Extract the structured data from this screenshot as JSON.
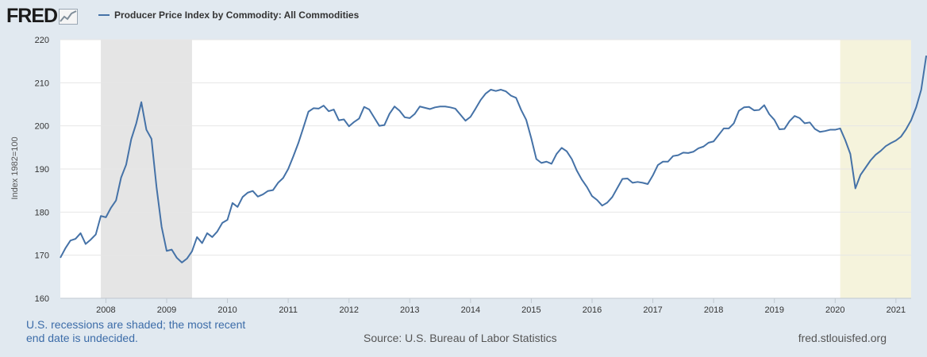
{
  "header": {
    "logo_text": "FRED",
    "legend_label": "Producer Price Index by Commodity: All Commodities"
  },
  "footer": {
    "note": "U.S. recessions are shaded; the most recent end date is undecided.",
    "source": "Source: U.S. Bureau of Labor Statistics",
    "url": "fred.stlouisfed.org"
  },
  "colors": {
    "series": "#4572a7",
    "recession_gray": "#e5e5e5",
    "recession_yellow": "#f5f3dc"
  },
  "chart_data": {
    "type": "line",
    "title": "Producer Price Index by Commodity: All Commodities",
    "ylabel": "Index 1982=100",
    "xlabel": "",
    "ylim": [
      160,
      220
    ],
    "yticks": [
      160,
      170,
      180,
      190,
      200,
      210,
      220
    ],
    "x_range": [
      2007.25,
      2021.25
    ],
    "xticks": [
      {
        "value": 2008,
        "label": "2008"
      },
      {
        "value": 2009,
        "label": "2009"
      },
      {
        "value": 2010,
        "label": "2010"
      },
      {
        "value": 2011,
        "label": "2011"
      },
      {
        "value": 2012,
        "label": "2012"
      },
      {
        "value": 2013,
        "label": "2013"
      },
      {
        "value": 2014,
        "label": "2014"
      },
      {
        "value": 2015,
        "label": "2015"
      },
      {
        "value": 2016,
        "label": "2016"
      },
      {
        "value": 2017,
        "label": "2017"
      },
      {
        "value": 2018,
        "label": "2018"
      },
      {
        "value": 2019,
        "label": "2019"
      },
      {
        "value": 2020,
        "label": "2020"
      },
      {
        "value": 2021,
        "label": "2021"
      }
    ],
    "recessions": [
      {
        "start": 2007.917,
        "end": 2009.417,
        "style": "gray"
      },
      {
        "start": 2020.083,
        "end": 2021.25,
        "style": "yellow"
      }
    ],
    "grid": true,
    "series": [
      {
        "name": "Producer Price Index by Commodity: All Commodities",
        "start_year": 2007.25,
        "step": 0.08333,
        "values": [
          169.4,
          171.6,
          173.4,
          173.8,
          175.1,
          172.6,
          173.6,
          174.8,
          179.1,
          178.8,
          181.0,
          182.7,
          188.0,
          191.0,
          196.9,
          200.6,
          205.5,
          199.1,
          197.0,
          185.8,
          176.6,
          171.0,
          171.3,
          169.4,
          168.3,
          169.2,
          170.9,
          174.2,
          172.8,
          175.1,
          174.2,
          175.5,
          177.5,
          178.2,
          182.1,
          181.2,
          183.5,
          184.5,
          184.9,
          183.6,
          184.1,
          184.9,
          185.1,
          186.8,
          187.9,
          190.0,
          192.9,
          196.0,
          199.6,
          203.3,
          204.1,
          204.0,
          204.7,
          203.4,
          203.8,
          201.3,
          201.5,
          199.9,
          200.9,
          201.7,
          204.4,
          203.8,
          201.9,
          200.0,
          200.2,
          202.8,
          204.5,
          203.5,
          202.0,
          201.8,
          202.8,
          204.5,
          204.2,
          203.9,
          204.3,
          204.5,
          204.5,
          204.3,
          204.0,
          202.6,
          201.2,
          202.1,
          204.0,
          206.0,
          207.5,
          208.4,
          208.1,
          208.4,
          208.0,
          207.0,
          206.5,
          203.7,
          201.4,
          197.1,
          192.3,
          191.4,
          191.7,
          191.2,
          193.5,
          194.9,
          194.1,
          192.3,
          189.6,
          187.5,
          185.8,
          183.7,
          182.8,
          181.5,
          182.2,
          183.5,
          185.6,
          187.7,
          187.8,
          186.8,
          187.0,
          186.8,
          186.5,
          188.5,
          190.9,
          191.7,
          191.7,
          193.0,
          193.2,
          193.8,
          193.7,
          194.0,
          194.8,
          195.2,
          196.1,
          196.4,
          197.9,
          199.4,
          199.4,
          200.6,
          203.5,
          204.3,
          204.4,
          203.6,
          203.7,
          204.8,
          202.7,
          201.4,
          199.2,
          199.3,
          201.1,
          202.3,
          201.8,
          200.6,
          200.8,
          199.3,
          198.6,
          198.8,
          199.1,
          199.1,
          199.4,
          196.7,
          193.5,
          185.5,
          188.6,
          190.3,
          192.0,
          193.3,
          194.2,
          195.3,
          196.0,
          196.6,
          197.5,
          199.2,
          201.3,
          204.3,
          208.4,
          216.3
        ]
      }
    ]
  }
}
